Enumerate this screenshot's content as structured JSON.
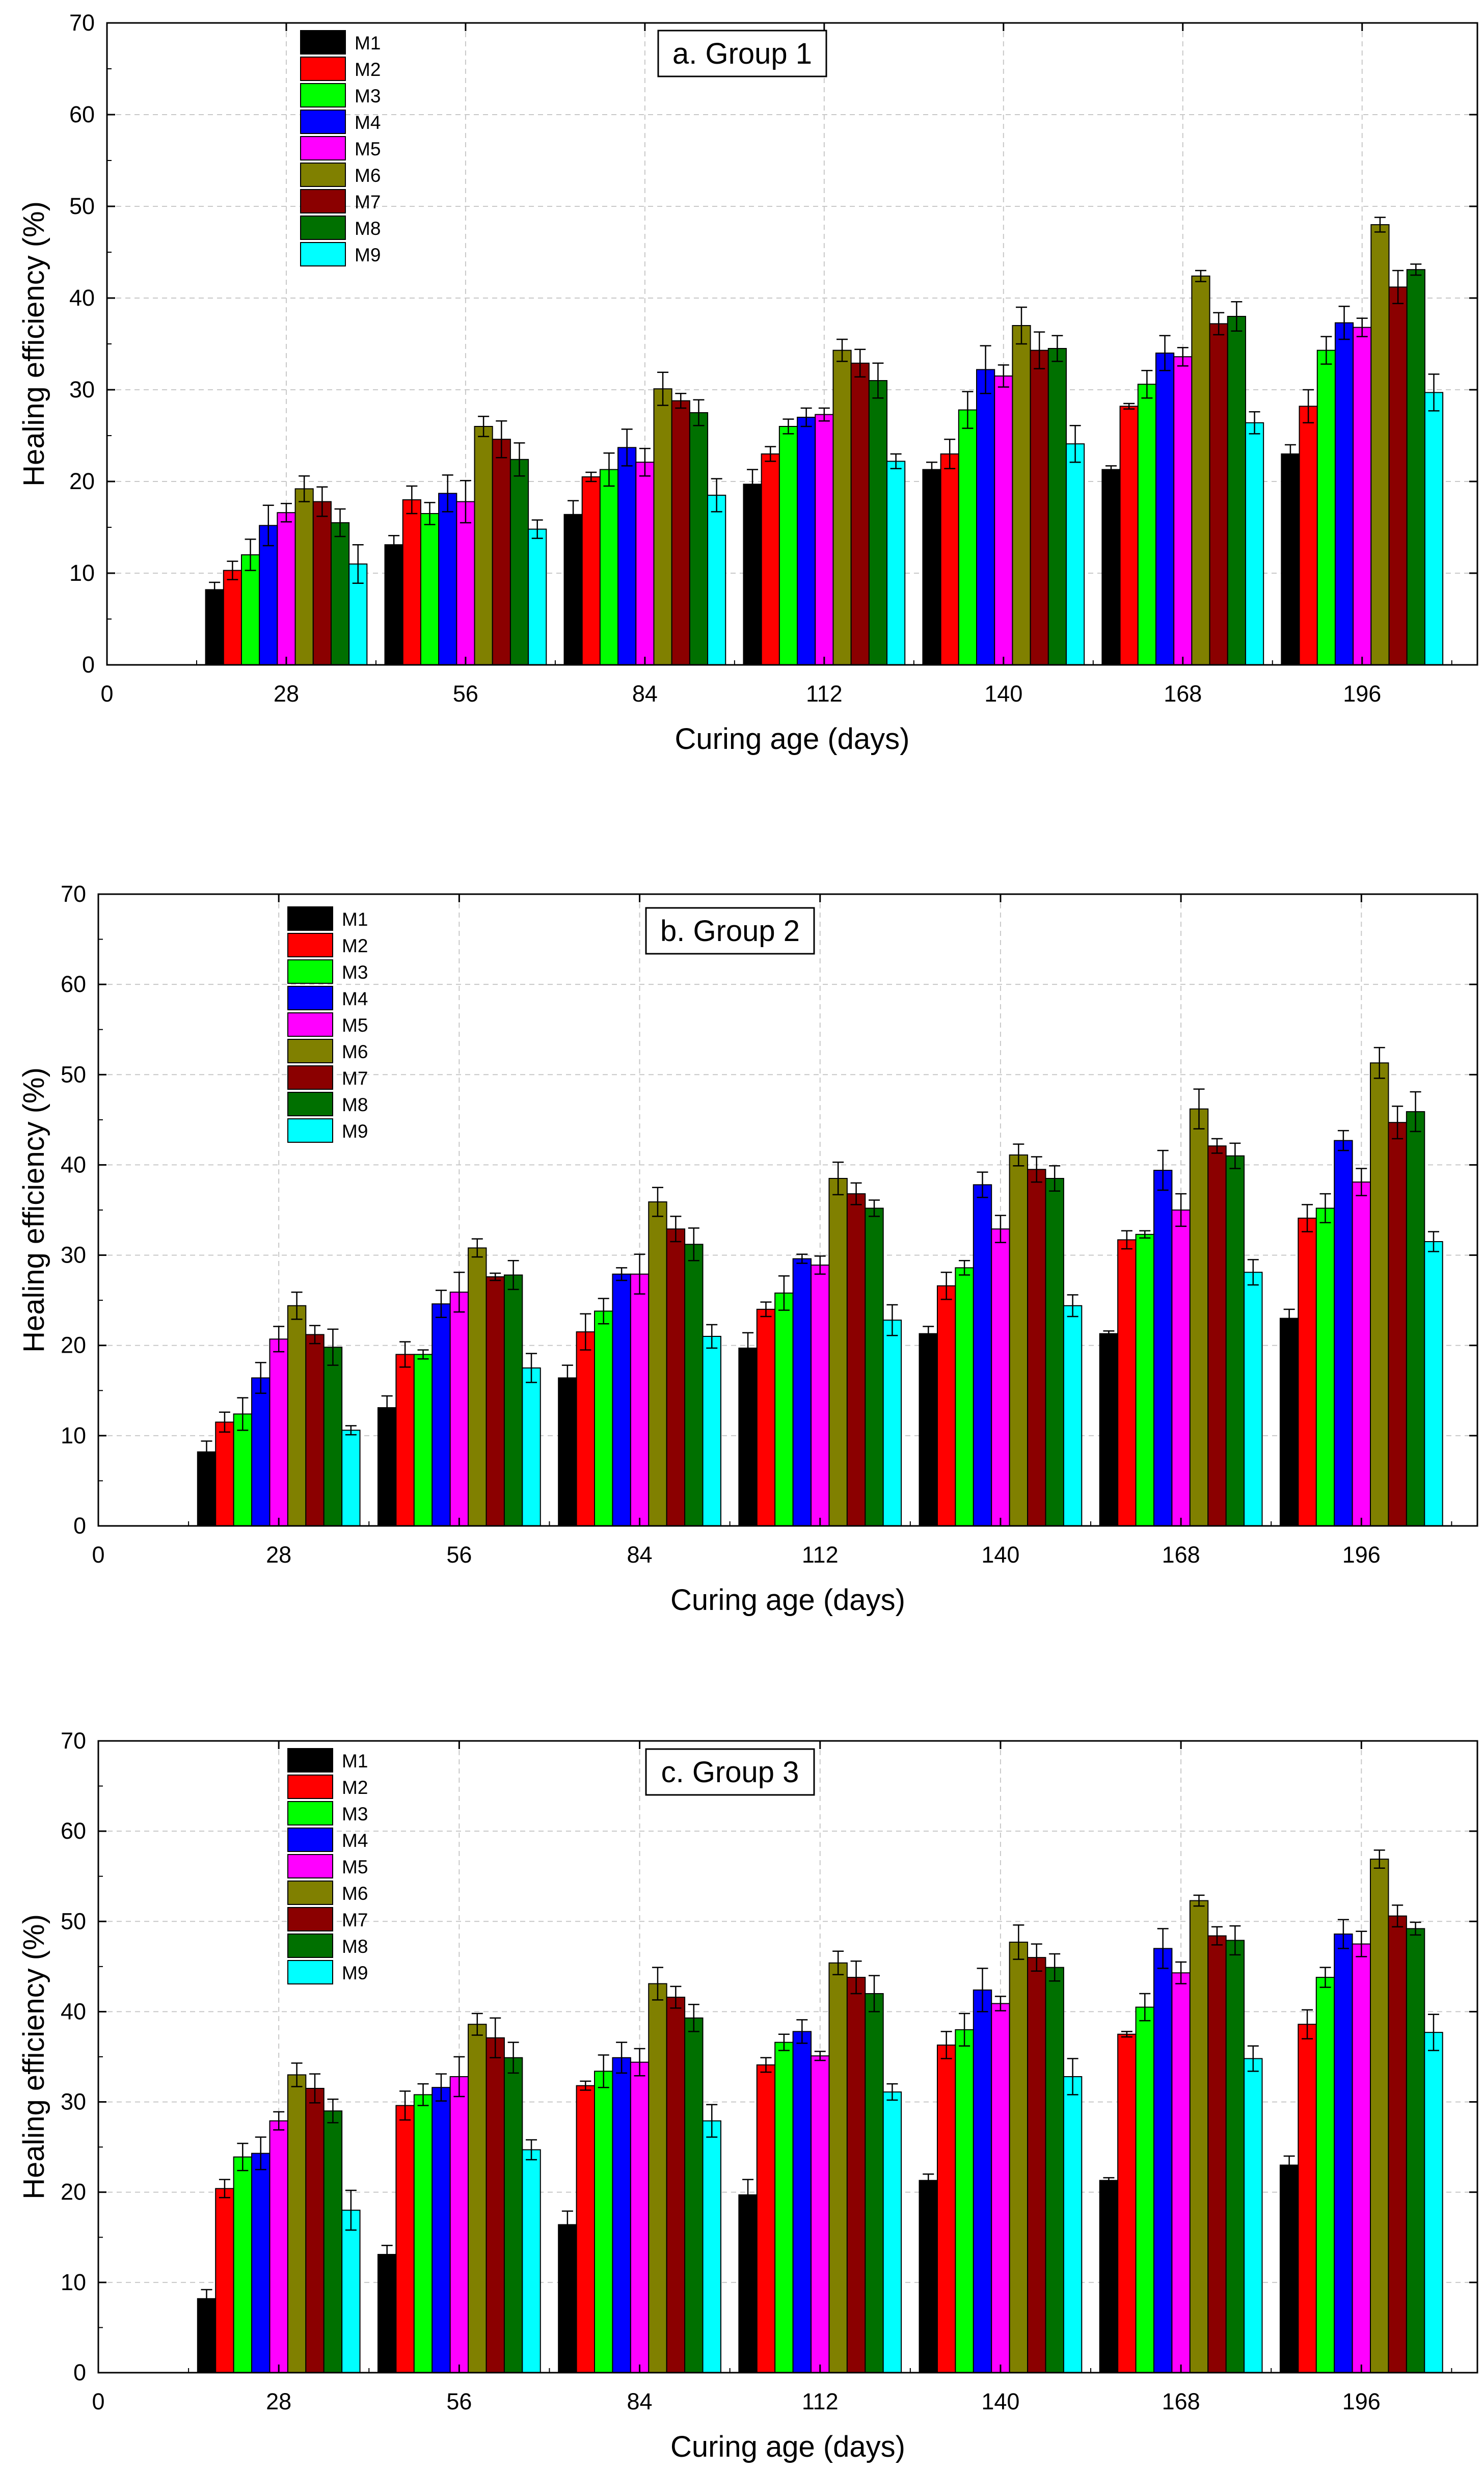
{
  "colors": {
    "M1": "#000000",
    "M2": "#ff0000",
    "M3": "#00ff00",
    "M4": "#0000ff",
    "M5": "#ff00ff",
    "M6": "#808000",
    "M7": "#8b0000",
    "M8": "#007000",
    "M9": "#00ffff"
  },
  "chart_data": [
    {
      "type": "bar",
      "title": "a. Group 1",
      "xlabel": "Curing age (days)",
      "ylabel": "Healing efficiency (%)",
      "ylim": [
        0,
        70
      ],
      "yticks": [
        0,
        10,
        20,
        30,
        40,
        50,
        60,
        70
      ],
      "xlim": [
        0,
        214
      ],
      "xticks": [
        0,
        28,
        56,
        84,
        112,
        140,
        168,
        196
      ],
      "categories": [
        28,
        56,
        84,
        112,
        140,
        168,
        196
      ],
      "legend_position": "top-left",
      "grid": true,
      "series": [
        {
          "name": "M1",
          "values": [
            8.2,
            13.1,
            16.4,
            19.7,
            21.3,
            21.3,
            23.0
          ],
          "errors": [
            0.8,
            1.0,
            1.5,
            1.6,
            0.8,
            0.4,
            1.0
          ]
        },
        {
          "name": "M2",
          "values": [
            10.3,
            18.0,
            20.5,
            23.0,
            23.0,
            28.2,
            28.2
          ],
          "errors": [
            1.0,
            1.5,
            0.5,
            0.8,
            1.6,
            0.3,
            1.8
          ]
        },
        {
          "name": "M3",
          "values": [
            12.0,
            16.5,
            21.3,
            26.0,
            27.8,
            30.6,
            34.3
          ],
          "errors": [
            1.7,
            1.2,
            1.8,
            0.8,
            2.0,
            1.5,
            1.5
          ]
        },
        {
          "name": "M4",
          "values": [
            15.2,
            18.7,
            23.7,
            27.0,
            32.2,
            34.0,
            37.3
          ],
          "errors": [
            2.2,
            2.0,
            2.0,
            1.0,
            2.6,
            1.9,
            1.8
          ]
        },
        {
          "name": "M5",
          "values": [
            16.6,
            17.8,
            22.1,
            27.3,
            31.5,
            33.6,
            36.8
          ],
          "errors": [
            1.0,
            2.3,
            1.5,
            0.7,
            1.2,
            1.0,
            1.0
          ]
        },
        {
          "name": "M6",
          "values": [
            19.2,
            26.0,
            30.1,
            34.3,
            37.0,
            42.4,
            48.0
          ],
          "errors": [
            1.4,
            1.1,
            1.8,
            1.2,
            2.0,
            0.6,
            0.8
          ]
        },
        {
          "name": "M7",
          "values": [
            17.8,
            24.6,
            28.8,
            32.9,
            34.3,
            37.2,
            41.2
          ],
          "errors": [
            1.6,
            2.0,
            0.8,
            1.5,
            2.0,
            1.2,
            1.8
          ]
        },
        {
          "name": "M8",
          "values": [
            15.5,
            22.4,
            27.5,
            31.0,
            34.5,
            38.0,
            43.1
          ],
          "errors": [
            1.5,
            1.8,
            1.4,
            1.9,
            1.4,
            1.6,
            0.6
          ]
        },
        {
          "name": "M9",
          "values": [
            11.0,
            14.8,
            18.5,
            22.2,
            24.1,
            26.4,
            29.7
          ],
          "errors": [
            2.1,
            1.0,
            1.8,
            0.8,
            2.0,
            1.2,
            2.0
          ]
        }
      ]
    },
    {
      "type": "bar",
      "title": "b. Group 2",
      "xlabel": "Curing age (days)",
      "ylabel": "Healing efficiency (%)",
      "ylim": [
        0,
        70
      ],
      "yticks": [
        0,
        10,
        20,
        30,
        40,
        50,
        60,
        70
      ],
      "xlim": [
        0,
        214
      ],
      "xticks": [
        0,
        28,
        56,
        84,
        112,
        140,
        168,
        196
      ],
      "categories": [
        28,
        56,
        84,
        112,
        140,
        168,
        196
      ],
      "legend_position": "top-left",
      "grid": true,
      "series": [
        {
          "name": "M1",
          "values": [
            8.2,
            13.1,
            16.4,
            19.7,
            21.3,
            21.3,
            23.0
          ],
          "errors": [
            1.2,
            1.3,
            1.4,
            1.7,
            0.8,
            0.3,
            1.0
          ]
        },
        {
          "name": "M2",
          "values": [
            11.5,
            19.0,
            21.5,
            24.0,
            26.6,
            31.7,
            34.1
          ],
          "errors": [
            1.1,
            1.4,
            2.0,
            0.8,
            1.5,
            1.0,
            1.5
          ]
        },
        {
          "name": "M3",
          "values": [
            12.4,
            19.0,
            23.8,
            25.8,
            28.6,
            32.3,
            35.2
          ],
          "errors": [
            1.8,
            0.5,
            1.4,
            1.9,
            0.8,
            0.4,
            1.6
          ]
        },
        {
          "name": "M4",
          "values": [
            16.4,
            24.6,
            27.9,
            29.6,
            37.8,
            39.4,
            42.7
          ],
          "errors": [
            1.7,
            1.5,
            0.7,
            0.5,
            1.4,
            2.2,
            1.1
          ]
        },
        {
          "name": "M5",
          "values": [
            20.7,
            25.9,
            27.9,
            28.9,
            32.9,
            35.0,
            38.1
          ],
          "errors": [
            1.4,
            2.2,
            2.2,
            1.0,
            1.5,
            1.8,
            1.5
          ]
        },
        {
          "name": "M6",
          "values": [
            24.4,
            30.8,
            35.9,
            38.5,
            41.1,
            46.2,
            51.3
          ],
          "errors": [
            1.5,
            1.0,
            1.6,
            1.8,
            1.2,
            2.2,
            1.7
          ]
        },
        {
          "name": "M7",
          "values": [
            21.2,
            27.6,
            32.9,
            36.8,
            39.5,
            42.1,
            44.7
          ],
          "errors": [
            1.0,
            0.4,
            1.4,
            1.2,
            1.4,
            0.8,
            1.8
          ]
        },
        {
          "name": "M8",
          "values": [
            19.8,
            27.8,
            31.2,
            35.2,
            38.5,
            41.0,
            45.9
          ],
          "errors": [
            2.0,
            1.6,
            1.8,
            0.9,
            1.4,
            1.4,
            2.2
          ]
        },
        {
          "name": "M9",
          "values": [
            10.6,
            17.5,
            21.0,
            22.8,
            24.4,
            28.1,
            31.5
          ],
          "errors": [
            0.5,
            1.6,
            1.3,
            1.7,
            1.2,
            1.4,
            1.1
          ]
        }
      ]
    },
    {
      "type": "bar",
      "title": "c. Group 3",
      "xlabel": "Curing age (days)",
      "ylabel": "Healing efficiency (%)",
      "ylim": [
        0,
        70
      ],
      "yticks": [
        0,
        10,
        20,
        30,
        40,
        50,
        60,
        70
      ],
      "xlim": [
        0,
        214
      ],
      "xticks": [
        0,
        28,
        56,
        84,
        112,
        140,
        168,
        196
      ],
      "categories": [
        28,
        56,
        84,
        112,
        140,
        168,
        196
      ],
      "legend_position": "top-left",
      "grid": true,
      "series": [
        {
          "name": "M1",
          "values": [
            8.2,
            13.1,
            16.4,
            19.7,
            21.3,
            21.3,
            23.0
          ],
          "errors": [
            1.0,
            1.0,
            1.5,
            1.7,
            0.7,
            0.3,
            1.0
          ]
        },
        {
          "name": "M2",
          "values": [
            20.4,
            29.6,
            31.8,
            34.1,
            36.3,
            37.5,
            38.6
          ],
          "errors": [
            1.0,
            1.6,
            0.5,
            0.8,
            1.5,
            0.3,
            1.6
          ]
        },
        {
          "name": "M3",
          "values": [
            23.9,
            30.8,
            33.4,
            36.6,
            38.0,
            40.5,
            43.8
          ],
          "errors": [
            1.5,
            1.2,
            1.8,
            0.9,
            1.8,
            1.5,
            1.1
          ]
        },
        {
          "name": "M4",
          "values": [
            24.3,
            31.6,
            34.9,
            37.8,
            42.4,
            47.0,
            48.6
          ],
          "errors": [
            1.8,
            1.5,
            1.7,
            1.3,
            2.4,
            2.2,
            1.6
          ]
        },
        {
          "name": "M5",
          "values": [
            27.9,
            32.8,
            34.4,
            35.1,
            40.9,
            44.3,
            47.5
          ],
          "errors": [
            1.0,
            2.2,
            1.5,
            0.5,
            0.8,
            1.2,
            1.4
          ]
        },
        {
          "name": "M6",
          "values": [
            33.0,
            38.6,
            43.1,
            45.4,
            47.7,
            52.3,
            56.9
          ],
          "errors": [
            1.3,
            1.2,
            1.8,
            1.3,
            1.9,
            0.6,
            1.0
          ]
        },
        {
          "name": "M7",
          "values": [
            31.5,
            37.1,
            41.6,
            43.8,
            46.0,
            48.4,
            50.6
          ],
          "errors": [
            1.6,
            2.2,
            1.2,
            1.8,
            1.5,
            1.0,
            1.2
          ]
        },
        {
          "name": "M8",
          "values": [
            29.0,
            34.9,
            39.3,
            42.0,
            44.9,
            47.9,
            49.2
          ],
          "errors": [
            1.3,
            1.7,
            1.5,
            2.0,
            1.5,
            1.6,
            0.7
          ]
        },
        {
          "name": "M9",
          "values": [
            18.0,
            24.7,
            27.9,
            31.1,
            32.8,
            34.8,
            37.7
          ],
          "errors": [
            2.2,
            1.1,
            1.8,
            0.9,
            2.0,
            1.4,
            2.0
          ]
        }
      ]
    }
  ]
}
